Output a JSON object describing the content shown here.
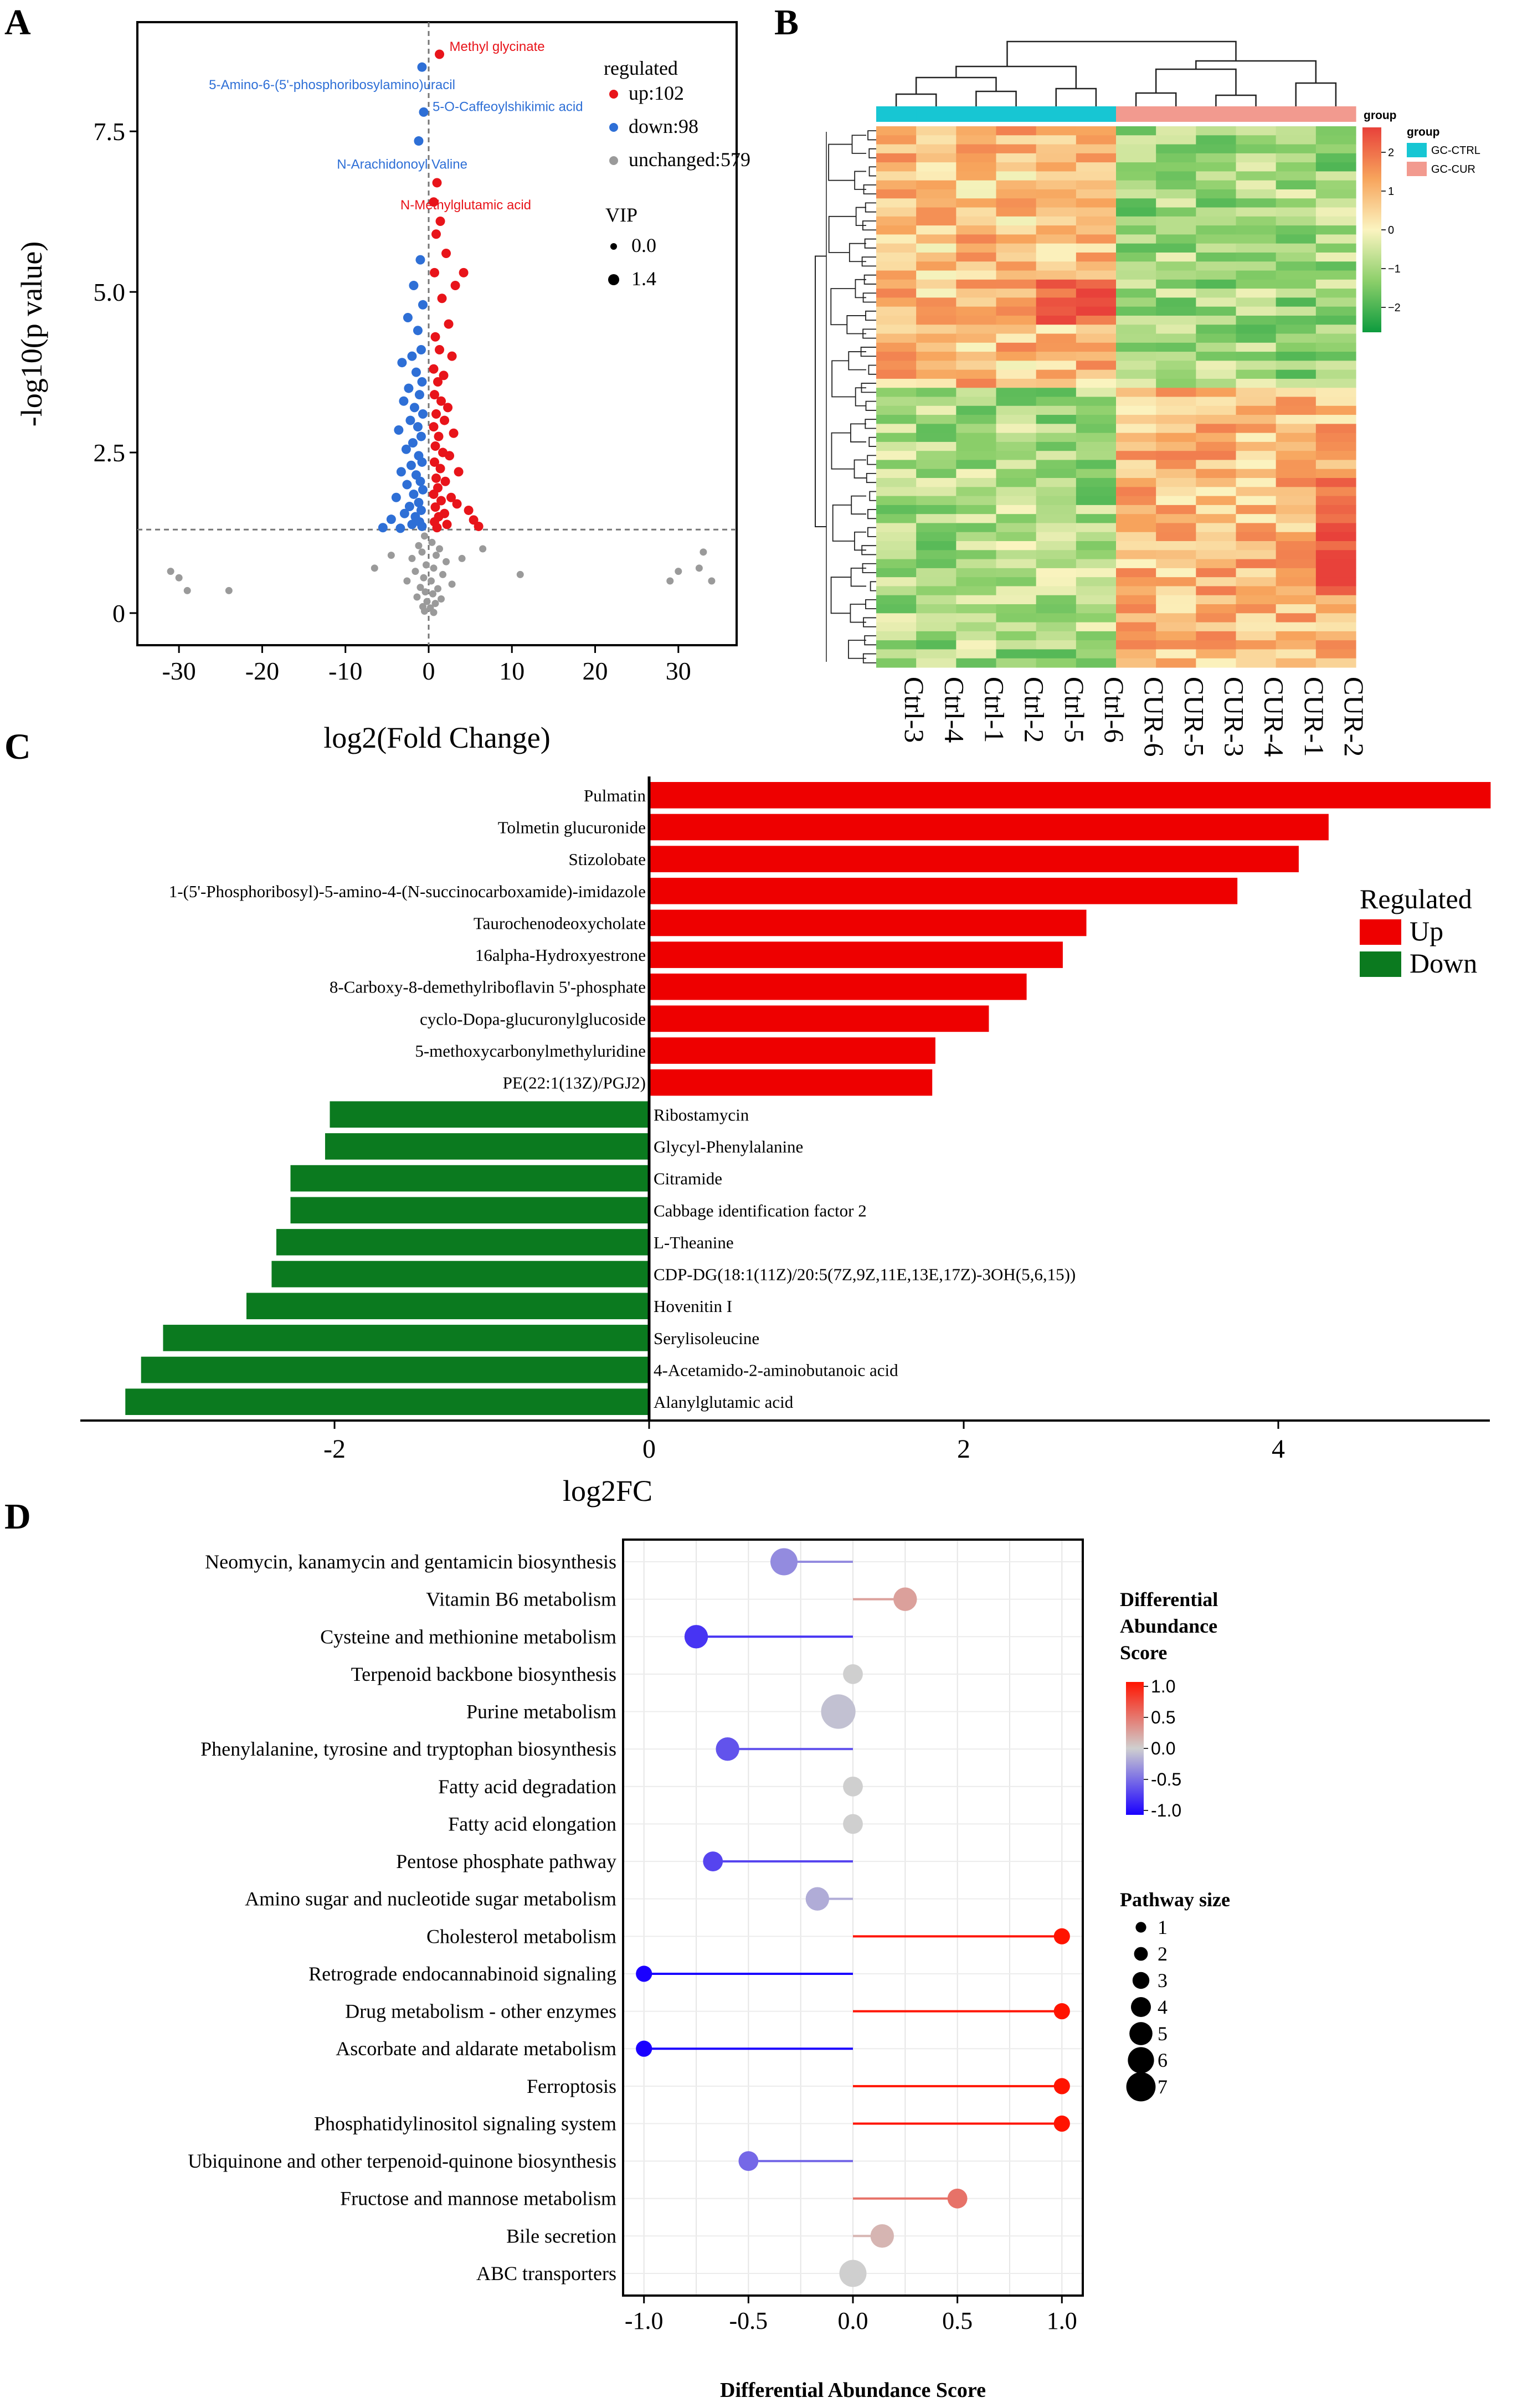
{
  "colors": {
    "up": "#e8141a",
    "down": "#2e6fd6",
    "unchanged": "#9a9a9a",
    "bar_up": "#ee0000",
    "bar_down": "#0b7a1f",
    "ctrl": "#17c6d3",
    "cur": "#f29a8f",
    "label_up": "#e8141a",
    "label_down": "#2e6fd6"
  },
  "chart_data": [
    {
      "panel": "A",
      "type": "scatter",
      "xlabel": "log2(Fold Change)",
      "ylabel": "-log10(p value)",
      "xlim": [
        -35,
        37
      ],
      "ylim": [
        -0.5,
        9.2
      ],
      "xticks": [
        -30,
        -20,
        -10,
        0,
        10,
        20,
        30
      ],
      "yticks": [
        0,
        2.5,
        5.0,
        7.5
      ],
      "ytick_labels": [
        "0",
        "2.5",
        "5.0",
        "7.5"
      ],
      "threshold_y": 1.3,
      "legend_title": "regulated",
      "legend": [
        {
          "name": "up",
          "label": "up:102"
        },
        {
          "name": "down",
          "label": "down:98"
        },
        {
          "name": "unchanged",
          "label": "unchanged:579"
        }
      ],
      "size_legend_title": "VIP",
      "size_legend": [
        "0.0",
        "1.4"
      ],
      "annotations": [
        {
          "text": "Methyl glycinate",
          "x": 1.3,
          "y": 8.7,
          "group": "up"
        },
        {
          "text": "5-Amino-6-(5'-phosphoribosylamino)uracil",
          "x": -0.8,
          "y": 8.5,
          "group": "down"
        },
        {
          "text": "5-O-Caffeoylshikimic acid",
          "x": -0.6,
          "y": 7.8,
          "group": "down"
        },
        {
          "text": "N-Arachidonoyl Valine",
          "x": -1.2,
          "y": 7.35,
          "group": "down"
        },
        {
          "text": "N-Methylglutamic acid",
          "x": 1.0,
          "y": 6.7,
          "group": "up"
        }
      ],
      "points": [
        {
          "x": 1.3,
          "y": 8.7,
          "g": "up"
        },
        {
          "x": -0.8,
          "y": 8.5,
          "g": "down"
        },
        {
          "x": -0.6,
          "y": 7.8,
          "g": "down"
        },
        {
          "x": -1.2,
          "y": 7.35,
          "g": "down"
        },
        {
          "x": 1.0,
          "y": 6.7,
          "g": "up"
        },
        {
          "x": 0.6,
          "y": 6.4,
          "g": "up"
        },
        {
          "x": 1.4,
          "y": 6.1,
          "g": "up"
        },
        {
          "x": 0.9,
          "y": 5.9,
          "g": "up"
        },
        {
          "x": 2.1,
          "y": 5.6,
          "g": "up"
        },
        {
          "x": 4.2,
          "y": 5.3,
          "g": "up"
        },
        {
          "x": 0.7,
          "y": 5.3,
          "g": "up"
        },
        {
          "x": 3.2,
          "y": 5.1,
          "g": "up"
        },
        {
          "x": 1.6,
          "y": 4.9,
          "g": "up"
        },
        {
          "x": 2.4,
          "y": 4.5,
          "g": "up"
        },
        {
          "x": 0.8,
          "y": 4.3,
          "g": "up"
        },
        {
          "x": 1.3,
          "y": 4.1,
          "g": "up"
        },
        {
          "x": 2.8,
          "y": 4.0,
          "g": "up"
        },
        {
          "x": 0.6,
          "y": 3.8,
          "g": "up"
        },
        {
          "x": 1.8,
          "y": 3.7,
          "g": "up"
        },
        {
          "x": 1.1,
          "y": 3.6,
          "g": "up"
        },
        {
          "x": 0.7,
          "y": 3.4,
          "g": "up"
        },
        {
          "x": 1.5,
          "y": 3.3,
          "g": "up"
        },
        {
          "x": 2.3,
          "y": 3.2,
          "g": "up"
        },
        {
          "x": 0.9,
          "y": 3.1,
          "g": "up"
        },
        {
          "x": 1.9,
          "y": 3.0,
          "g": "up"
        },
        {
          "x": 0.6,
          "y": 2.9,
          "g": "up"
        },
        {
          "x": 3.0,
          "y": 2.8,
          "g": "up"
        },
        {
          "x": 1.2,
          "y": 2.75,
          "g": "up"
        },
        {
          "x": 0.8,
          "y": 2.6,
          "g": "up"
        },
        {
          "x": 1.7,
          "y": 2.5,
          "g": "up"
        },
        {
          "x": 2.5,
          "y": 2.45,
          "g": "up"
        },
        {
          "x": 0.7,
          "y": 2.35,
          "g": "up"
        },
        {
          "x": 1.4,
          "y": 2.25,
          "g": "up"
        },
        {
          "x": 3.6,
          "y": 2.2,
          "g": "up"
        },
        {
          "x": 0.9,
          "y": 2.1,
          "g": "up"
        },
        {
          "x": 2.0,
          "y": 2.05,
          "g": "up"
        },
        {
          "x": 1.1,
          "y": 1.95,
          "g": "up"
        },
        {
          "x": 0.6,
          "y": 1.85,
          "g": "up"
        },
        {
          "x": 2.7,
          "y": 1.8,
          "g": "up"
        },
        {
          "x": 1.5,
          "y": 1.75,
          "g": "up"
        },
        {
          "x": 3.4,
          "y": 1.7,
          "g": "up"
        },
        {
          "x": 0.8,
          "y": 1.65,
          "g": "up"
        },
        {
          "x": 4.8,
          "y": 1.6,
          "g": "up"
        },
        {
          "x": 1.9,
          "y": 1.55,
          "g": "up"
        },
        {
          "x": 1.2,
          "y": 1.5,
          "g": "up"
        },
        {
          "x": 5.4,
          "y": 1.45,
          "g": "up"
        },
        {
          "x": 0.7,
          "y": 1.42,
          "g": "up"
        },
        {
          "x": 2.2,
          "y": 1.38,
          "g": "up"
        },
        {
          "x": 6.0,
          "y": 1.35,
          "g": "up"
        },
        {
          "x": 1.0,
          "y": 1.33,
          "g": "up"
        },
        {
          "x": -1.0,
          "y": 5.5,
          "g": "down"
        },
        {
          "x": -1.8,
          "y": 5.1,
          "g": "down"
        },
        {
          "x": -0.7,
          "y": 4.8,
          "g": "down"
        },
        {
          "x": -2.5,
          "y": 4.6,
          "g": "down"
        },
        {
          "x": -1.3,
          "y": 4.4,
          "g": "down"
        },
        {
          "x": -0.9,
          "y": 4.1,
          "g": "down"
        },
        {
          "x": -2.0,
          "y": 4.0,
          "g": "down"
        },
        {
          "x": -3.2,
          "y": 3.9,
          "g": "down"
        },
        {
          "x": -1.5,
          "y": 3.75,
          "g": "down"
        },
        {
          "x": -0.8,
          "y": 3.6,
          "g": "down"
        },
        {
          "x": -2.4,
          "y": 3.5,
          "g": "down"
        },
        {
          "x": -1.1,
          "y": 3.4,
          "g": "down"
        },
        {
          "x": -3.0,
          "y": 3.3,
          "g": "down"
        },
        {
          "x": -1.7,
          "y": 3.2,
          "g": "down"
        },
        {
          "x": -0.7,
          "y": 3.1,
          "g": "down"
        },
        {
          "x": -2.2,
          "y": 3.0,
          "g": "down"
        },
        {
          "x": -1.3,
          "y": 2.9,
          "g": "down"
        },
        {
          "x": -3.6,
          "y": 2.85,
          "g": "down"
        },
        {
          "x": -0.9,
          "y": 2.75,
          "g": "down"
        },
        {
          "x": -1.9,
          "y": 2.65,
          "g": "down"
        },
        {
          "x": -2.7,
          "y": 2.55,
          "g": "down"
        },
        {
          "x": -1.2,
          "y": 2.45,
          "g": "down"
        },
        {
          "x": -0.8,
          "y": 2.35,
          "g": "down"
        },
        {
          "x": -2.1,
          "y": 2.3,
          "g": "down"
        },
        {
          "x": -3.3,
          "y": 2.2,
          "g": "down"
        },
        {
          "x": -1.5,
          "y": 2.15,
          "g": "down"
        },
        {
          "x": -1.0,
          "y": 2.05,
          "g": "down"
        },
        {
          "x": -2.6,
          "y": 2.0,
          "g": "down"
        },
        {
          "x": -0.7,
          "y": 1.92,
          "g": "down"
        },
        {
          "x": -1.8,
          "y": 1.85,
          "g": "down"
        },
        {
          "x": -3.9,
          "y": 1.8,
          "g": "down"
        },
        {
          "x": -1.2,
          "y": 1.72,
          "g": "down"
        },
        {
          "x": -2.3,
          "y": 1.66,
          "g": "down"
        },
        {
          "x": -0.9,
          "y": 1.6,
          "g": "down"
        },
        {
          "x": -2.9,
          "y": 1.55,
          "g": "down"
        },
        {
          "x": -1.6,
          "y": 1.5,
          "g": "down"
        },
        {
          "x": -4.5,
          "y": 1.46,
          "g": "down"
        },
        {
          "x": -1.1,
          "y": 1.42,
          "g": "down"
        },
        {
          "x": -2.0,
          "y": 1.38,
          "g": "down"
        },
        {
          "x": -0.8,
          "y": 1.35,
          "g": "down"
        },
        {
          "x": -5.5,
          "y": 1.33,
          "g": "down"
        },
        {
          "x": -3.4,
          "y": 1.32,
          "g": "down"
        },
        {
          "x": -0.5,
          "y": 1.2,
          "g": "unchanged"
        },
        {
          "x": 0.4,
          "y": 1.1,
          "g": "unchanged"
        },
        {
          "x": -1.2,
          "y": 1.05,
          "g": "unchanged"
        },
        {
          "x": 1.3,
          "y": 1.0,
          "g": "unchanged"
        },
        {
          "x": -0.8,
          "y": 0.95,
          "g": "unchanged"
        },
        {
          "x": 0.9,
          "y": 0.9,
          "g": "unchanged"
        },
        {
          "x": -2.0,
          "y": 0.85,
          "g": "unchanged"
        },
        {
          "x": 2.1,
          "y": 0.8,
          "g": "unchanged"
        },
        {
          "x": -0.3,
          "y": 0.75,
          "g": "unchanged"
        },
        {
          "x": 0.6,
          "y": 0.7,
          "g": "unchanged"
        },
        {
          "x": -1.6,
          "y": 0.65,
          "g": "unchanged"
        },
        {
          "x": 1.7,
          "y": 0.6,
          "g": "unchanged"
        },
        {
          "x": -0.6,
          "y": 0.55,
          "g": "unchanged"
        },
        {
          "x": 0.3,
          "y": 0.5,
          "g": "unchanged"
        },
        {
          "x": -2.6,
          "y": 0.5,
          "g": "unchanged"
        },
        {
          "x": 2.8,
          "y": 0.45,
          "g": "unchanged"
        },
        {
          "x": -1.0,
          "y": 0.4,
          "g": "unchanged"
        },
        {
          "x": 1.1,
          "y": 0.38,
          "g": "unchanged"
        },
        {
          "x": -0.4,
          "y": 0.33,
          "g": "unchanged"
        },
        {
          "x": 0.5,
          "y": 0.3,
          "g": "unchanged"
        },
        {
          "x": -1.4,
          "y": 0.25,
          "g": "unchanged"
        },
        {
          "x": 1.5,
          "y": 0.22,
          "g": "unchanged"
        },
        {
          "x": -0.2,
          "y": 0.18,
          "g": "unchanged"
        },
        {
          "x": 0.8,
          "y": 0.15,
          "g": "unchanged"
        },
        {
          "x": -0.7,
          "y": 0.1,
          "g": "unchanged"
        },
        {
          "x": 0.2,
          "y": 0.08,
          "g": "unchanged"
        },
        {
          "x": -0.5,
          "y": 0.03,
          "g": "unchanged"
        },
        {
          "x": 0.6,
          "y": 0.01,
          "g": "unchanged"
        },
        {
          "x": 6.5,
          "y": 1.0,
          "g": "unchanged"
        },
        {
          "x": 11.0,
          "y": 0.6,
          "g": "unchanged"
        },
        {
          "x": -6.5,
          "y": 0.7,
          "g": "unchanged"
        },
        {
          "x": -4.5,
          "y": 0.9,
          "g": "unchanged"
        },
        {
          "x": 4.0,
          "y": 0.85,
          "g": "unchanged"
        },
        {
          "x": -30.0,
          "y": 0.55,
          "g": "unchanged"
        },
        {
          "x": -29.0,
          "y": 0.35,
          "g": "unchanged"
        },
        {
          "x": -24.0,
          "y": 0.35,
          "g": "unchanged"
        },
        {
          "x": -31.0,
          "y": 0.65,
          "g": "unchanged"
        },
        {
          "x": 29.0,
          "y": 0.5,
          "g": "unchanged"
        },
        {
          "x": 30.0,
          "y": 0.65,
          "g": "unchanged"
        },
        {
          "x": 33.0,
          "y": 0.95,
          "g": "unchanged"
        },
        {
          "x": 34.0,
          "y": 0.5,
          "g": "unchanged"
        },
        {
          "x": 32.5,
          "y": 0.7,
          "g": "unchanged"
        }
      ]
    },
    {
      "panel": "B",
      "type": "heatmap",
      "columns": [
        "Ctrl-3",
        "Ctrl-4",
        "Ctrl-1",
        "Ctrl-2",
        "Ctrl-5",
        "Ctrl-6",
        "CUR-6",
        "CUR-5",
        "CUR-3",
        "CUR-4",
        "CUR-1",
        "CUR-2"
      ],
      "column_groups": [
        "GC-CTRL",
        "GC-CTRL",
        "GC-CTRL",
        "GC-CTRL",
        "GC-CTRL",
        "GC-CTRL",
        "GC-CUR",
        "GC-CUR",
        "GC-CUR",
        "GC-CUR",
        "GC-CUR",
        "GC-CUR"
      ],
      "n_rows": 60,
      "color_scale_title": "group",
      "color_scale_ticks": [
        2,
        1,
        0,
        -1,
        -2
      ],
      "color_scale_tick_labels": [
        "2",
        "1",
        "0",
        "−1",
        "−2"
      ],
      "legend_title": "group",
      "legend": [
        {
          "name": "GC-CTRL"
        },
        {
          "name": "GC-CUR"
        }
      ]
    },
    {
      "panel": "C",
      "type": "bar",
      "orientation": "horizontal",
      "xlabel": "log2FC",
      "xlim": [
        -3.5,
        5.35
      ],
      "xticks": [
        -2,
        0,
        2,
        4
      ],
      "legend_title": "Regulated",
      "legend": [
        "Up",
        "Down"
      ],
      "categories": [
        "Pulmatin",
        "Tolmetin glucuronide",
        "Stizolobate",
        "1-(5'-Phosphoribosyl)-5-amino-4-(N-succinocarboxamide)-imidazole",
        "Taurochenodeoxycholate",
        "16alpha-Hydroxyestrone",
        "8-Carboxy-8-demethylriboflavin 5'-phosphate",
        "cyclo-Dopa-glucuronylglucoside",
        "5-methoxycarbonylmethyluridine",
        "PE(22:1(13Z)/PGJ2)",
        "Ribostamycin",
        "Glycyl-Phenylalanine",
        "Citramide",
        "Cabbage identification factor 2",
        "L-Theanine",
        "CDP-DG(18:1(11Z)/20:5(7Z,9Z,11E,13E,17Z)-3OH(5,6,15))",
        "Hovenitin I",
        "Serylisoleucine",
        "4-Acetamido-2-aminobutanoic acid",
        "Alanylglutamic acid"
      ],
      "values": [
        5.35,
        4.32,
        4.13,
        3.74,
        2.78,
        2.63,
        2.4,
        2.16,
        1.82,
        1.8,
        -2.03,
        -2.06,
        -2.28,
        -2.28,
        -2.37,
        -2.4,
        -2.56,
        -3.09,
        -3.23,
        -3.33
      ]
    },
    {
      "panel": "D",
      "type": "scatter",
      "subtype": "lollipop",
      "xlabel": "Differential Abundance Score",
      "xlim": [
        -1.1,
        1.1
      ],
      "xticks": [
        -1.0,
        -0.5,
        0.0,
        0.5,
        1.0
      ],
      "xtick_labels": [
        "-1.0",
        "-0.5",
        "0.0",
        "0.5",
        "1.0"
      ],
      "colorbar_title": [
        "Differential",
        "Abundance",
        "Score"
      ],
      "colorbar_ticks": [
        1.0,
        0.5,
        0.0,
        -0.5,
        -1.0
      ],
      "colorbar_tick_labels": [
        "1.0",
        "0.5",
        "0.0",
        "-0.5",
        "-1.0"
      ],
      "size_legend_title": "Pathway size",
      "size_legend": [
        "1",
        "2",
        "3",
        "4",
        "5",
        "6",
        "7"
      ],
      "categories": [
        "Neomycin, kanamycin and gentamicin biosynthesis",
        "Vitamin B6 metabolism",
        "Cysteine and methionine metabolism",
        "Terpenoid backbone biosynthesis",
        "Purine metabolism",
        "Phenylalanine, tyrosine and tryptophan biosynthesis",
        "Fatty acid degradation",
        "Fatty acid elongation",
        "Pentose phosphate pathway",
        "Amino sugar and nucleotide sugar metabolism",
        "Cholesterol metabolism",
        "Retrograde endocannabinoid signaling",
        "Drug metabolism - other enzymes",
        "Ascorbate and aldarate metabolism",
        "Ferroptosis",
        "Phosphatidylinositol signaling system",
        "Ubiquinone and other terpenoid-quinone biosynthesis",
        "Fructose and mannose metabolism",
        "Bile secretion",
        "ABC transporters"
      ],
      "values": [
        -0.33,
        0.25,
        -0.75,
        0.0,
        -0.07,
        -0.6,
        0.0,
        0.0,
        -0.67,
        -0.17,
        1.0,
        -1.0,
        1.0,
        -1.0,
        1.0,
        1.0,
        -0.5,
        0.5,
        0.14,
        0.0
      ],
      "sizes": [
        5,
        4,
        4,
        3,
        7,
        4,
        3,
        3,
        3,
        4,
        2,
        2,
        2,
        2,
        2,
        2,
        3,
        3,
        4,
        5
      ]
    }
  ],
  "panel_labels": {
    "a": "A",
    "b": "B",
    "c": "C",
    "d": "D"
  }
}
